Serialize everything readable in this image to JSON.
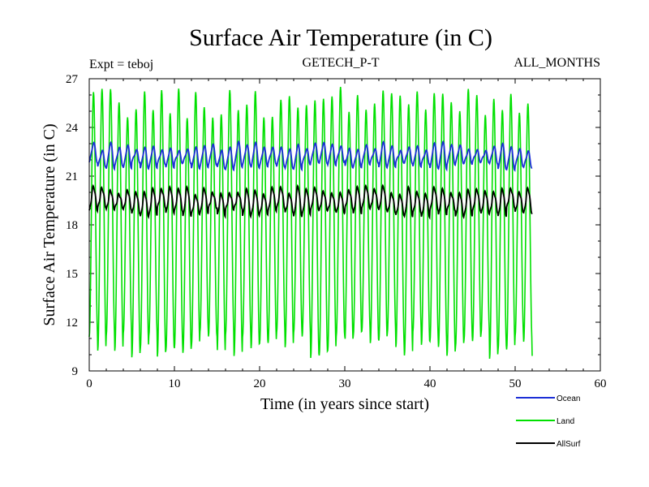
{
  "chart_data": {
    "type": "line",
    "title": "Surface Air Temperature (in C)",
    "subtitle_left": "Expt = teboj",
    "subtitle_center": "GETECH_P-T",
    "subtitle_right": "ALL_MONTHS",
    "xlabel": "Time (in years since start)",
    "ylabel": "Surface Air Temperature (in C)",
    "xlim": [
      0,
      60
    ],
    "ylim": [
      9,
      27
    ],
    "xticks": [
      0,
      10,
      20,
      30,
      40,
      50,
      60
    ],
    "yticks": [
      9,
      12,
      15,
      18,
      21,
      24,
      27
    ],
    "x_range_of_data": [
      0,
      52
    ],
    "cycle_period_years": 1,
    "series": [
      {
        "name": "Ocean",
        "color": "#1c2fd6",
        "mean": 22.1,
        "amplitude": 0.45,
        "max_range": [
          22.5,
          23.1
        ],
        "min_range": [
          21.4,
          21.9
        ]
      },
      {
        "name": "Land",
        "color": "#00e000",
        "mean": 18.4,
        "amplitude": 7.8,
        "max_range": [
          24.5,
          26.5
        ],
        "min_range": [
          9.7,
          11.5
        ]
      },
      {
        "name": "AllSurf",
        "color": "#000000",
        "mean": 19.6,
        "amplitude": 0.6,
        "max_range": [
          19.8,
          20.4
        ],
        "min_range": [
          18.5,
          19.1
        ]
      }
    ]
  }
}
